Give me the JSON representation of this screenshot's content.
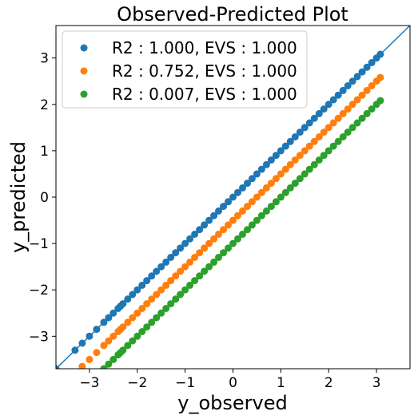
{
  "chart_data": {
    "type": "scatter",
    "title": "Observed-Predicted Plot",
    "xlabel": "y_observed",
    "ylabel": "y_predicted",
    "xlim": [
      -3.7,
      3.7
    ],
    "ylim": [
      -3.7,
      3.7
    ],
    "xticks": [
      -3,
      -2,
      -1,
      0,
      1,
      2,
      3
    ],
    "yticks": [
      -3,
      -2,
      -1,
      0,
      1,
      2,
      3
    ],
    "xtick_labels": [
      "−3",
      "−2",
      "−1",
      "0",
      "1",
      "2",
      "3"
    ],
    "ytick_labels": [
      "−3",
      "−2",
      "−1",
      "0",
      "1",
      "2",
      "3"
    ],
    "grid": false,
    "legend_position": "upper-left",
    "reference_line": {
      "x": [
        -3.7,
        3.7
      ],
      "y": [
        -3.7,
        3.7
      ],
      "color": "#1f77b4"
    },
    "series": [
      {
        "name": "R2 : 1.000, EVS : 1.000",
        "color": "#1f77b4",
        "offset": 0.0,
        "x": [
          -3.7,
          -3.3,
          -3.15,
          -3.0,
          -2.85,
          -2.7,
          -2.6,
          -2.5,
          -2.4,
          -2.35,
          -2.3,
          -2.2,
          -2.1,
          -2.0,
          -1.9,
          -1.8,
          -1.7,
          -1.6,
          -1.5,
          -1.4,
          -1.3,
          -1.2,
          -1.1,
          -1.0,
          -0.9,
          -0.8,
          -0.7,
          -0.6,
          -0.5,
          -0.4,
          -0.3,
          -0.2,
          -0.1,
          0.0,
          0.1,
          0.2,
          0.3,
          0.4,
          0.5,
          0.6,
          0.7,
          0.8,
          0.9,
          1.0,
          1.1,
          1.2,
          1.3,
          1.4,
          1.5,
          1.6,
          1.7,
          1.8,
          1.9,
          2.0,
          2.1,
          2.2,
          2.3,
          2.4,
          2.5,
          2.6,
          2.7,
          2.8,
          2.9,
          3.0,
          3.08
        ]
      },
      {
        "name": "R2 : 0.752, EVS : 1.000",
        "color": "#ff7f0e",
        "offset": -0.5,
        "x": [
          -3.3,
          -3.15,
          -3.0,
          -2.85,
          -2.7,
          -2.6,
          -2.5,
          -2.4,
          -2.35,
          -2.3,
          -2.2,
          -2.1,
          -2.0,
          -1.9,
          -1.8,
          -1.7,
          -1.6,
          -1.5,
          -1.4,
          -1.3,
          -1.2,
          -1.1,
          -1.0,
          -0.9,
          -0.8,
          -0.7,
          -0.6,
          -0.5,
          -0.4,
          -0.3,
          -0.2,
          -0.1,
          0.0,
          0.1,
          0.2,
          0.3,
          0.4,
          0.5,
          0.6,
          0.7,
          0.8,
          0.9,
          1.0,
          1.1,
          1.2,
          1.3,
          1.4,
          1.5,
          1.6,
          1.7,
          1.8,
          1.9,
          2.0,
          2.1,
          2.2,
          2.3,
          2.4,
          2.5,
          2.6,
          2.7,
          2.8,
          2.9,
          3.0,
          3.08
        ]
      },
      {
        "name": "R2 : 0.007, EVS : 1.000",
        "color": "#2ca02c",
        "offset": -1.0,
        "x": [
          -2.7,
          -2.6,
          -2.5,
          -2.4,
          -2.35,
          -2.3,
          -2.2,
          -2.1,
          -2.0,
          -1.9,
          -1.8,
          -1.7,
          -1.6,
          -1.5,
          -1.4,
          -1.3,
          -1.2,
          -1.1,
          -1.0,
          -0.9,
          -0.8,
          -0.7,
          -0.6,
          -0.5,
          -0.4,
          -0.3,
          -0.2,
          -0.1,
          0.0,
          0.1,
          0.2,
          0.3,
          0.4,
          0.5,
          0.6,
          0.7,
          0.8,
          0.9,
          1.0,
          1.1,
          1.2,
          1.3,
          1.4,
          1.5,
          1.6,
          1.7,
          1.8,
          1.9,
          2.0,
          2.1,
          2.2,
          2.3,
          2.4,
          2.5,
          2.6,
          2.7,
          2.8,
          2.9,
          3.0,
          3.08
        ]
      }
    ]
  }
}
